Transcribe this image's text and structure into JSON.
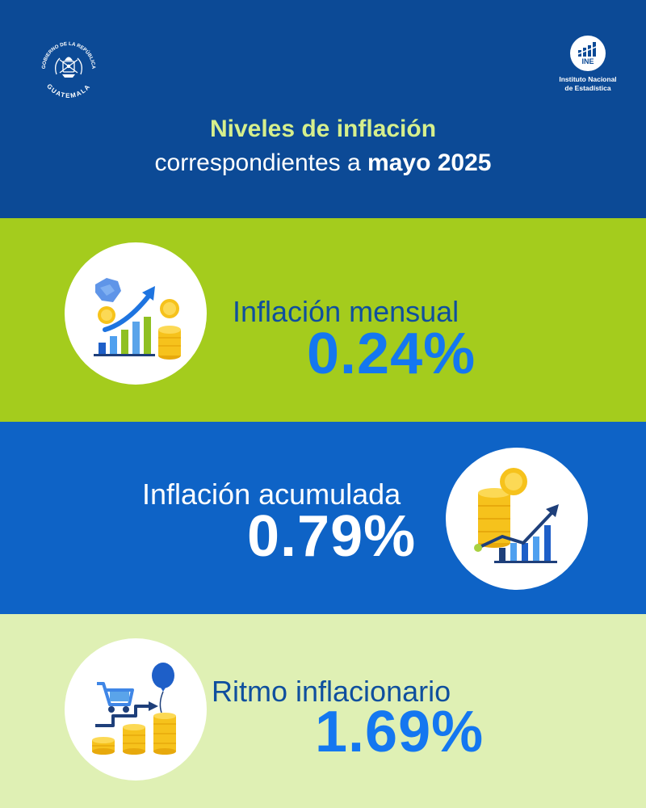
{
  "header": {
    "seal": {
      "top_text": "GOBIERNO DE LA REPÚBLICA",
      "bottom_text": "GUATEMALA",
      "icon": "government-seal-icon"
    },
    "institute": {
      "abbr": "INE",
      "name_line1": "Instituto Nacional",
      "name_line2": "de Estadística",
      "icon": "ine-logo-icon"
    },
    "title_line1": "Niveles de inflación",
    "title_line2_prefix": "correspondientes a",
    "title_line2_bold": "mayo 2025"
  },
  "indicators": [
    {
      "label": "Inflación mensual",
      "value": "0.24%",
      "icon": "bar-chart-growth-coins-icon"
    },
    {
      "label": "Inflación acumulada",
      "value": "0.79%",
      "icon": "coins-trend-chart-icon"
    },
    {
      "label": "Ritmo inflacionario",
      "value": "1.69%",
      "icon": "shopping-cart-balloon-coins-icon"
    }
  ],
  "colors": {
    "header_bg": "#0c4a96",
    "title_accent": "#d6ef8c",
    "band1_bg": "#a4cc1d",
    "band2_bg": "#0e63c6",
    "band3_bg": "#dff0b4",
    "value_blue": "#1477f0",
    "label_blue": "#0f4f9e"
  }
}
